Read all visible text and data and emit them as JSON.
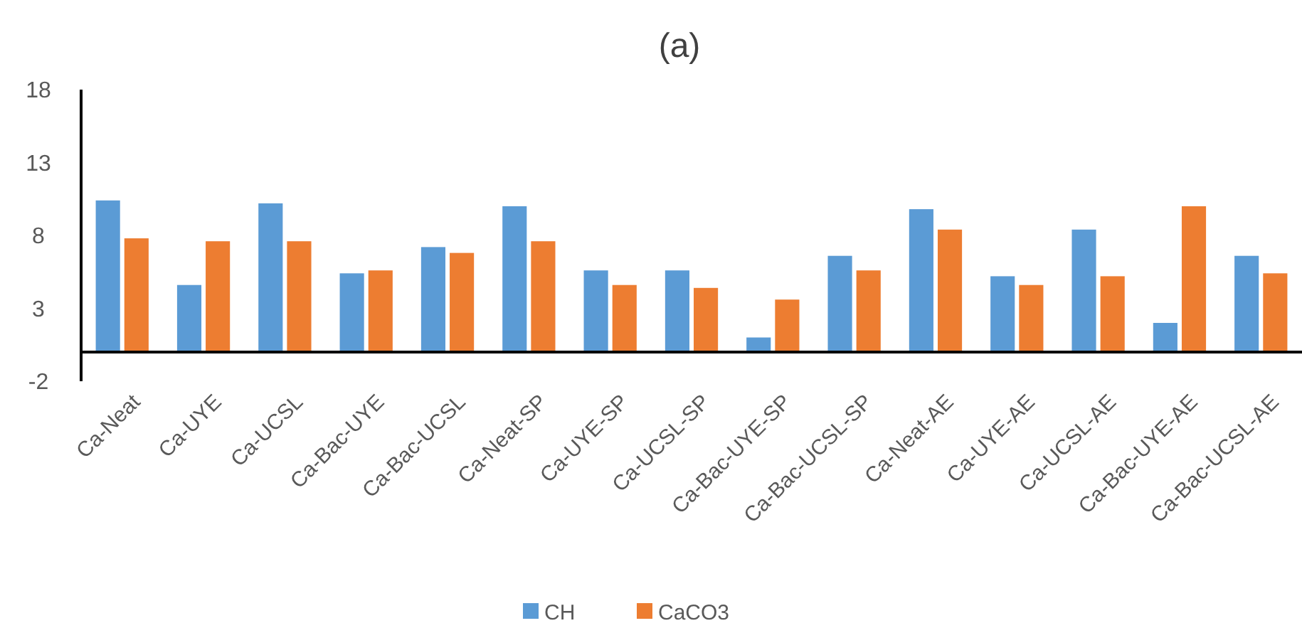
{
  "chart_data": {
    "type": "bar",
    "title": "(a)",
    "categories": [
      "Ca-Neat",
      "Ca-UYE",
      "Ca-UCSL",
      "Ca-Bac-UYE",
      "Ca-Bac-UCSL",
      "Ca-Neat-SP",
      "Ca-UYE-SP",
      "Ca-UCSL-SP",
      "Ca-Bac-UYE-SP",
      "Ca-Bac-UCSL-SP",
      "Ca-Neat-AE",
      "Ca-UYE-AE",
      "Ca-UCSL-AE",
      "Ca-Bac-UYE-AE",
      "Ca-Bac-UCSL-AE"
    ],
    "series": [
      {
        "name": "CH",
        "color": "#5b9bd5",
        "values": [
          10.4,
          4.6,
          10.2,
          5.4,
          7.2,
          10.0,
          5.6,
          5.6,
          1.0,
          6.6,
          9.8,
          5.2,
          8.4,
          2.0,
          6.6
        ]
      },
      {
        "name": "CaCO3",
        "color": "#ed7d31",
        "values": [
          7.8,
          7.6,
          7.6,
          5.6,
          6.8,
          7.6,
          4.6,
          4.4,
          3.6,
          5.6,
          8.4,
          4.6,
          5.2,
          10.0,
          5.4
        ]
      }
    ],
    "ylim": [
      -2,
      18
    ],
    "yticks": [
      -2,
      3,
      8,
      13,
      18
    ],
    "grid": false,
    "legend": "bottom"
  }
}
